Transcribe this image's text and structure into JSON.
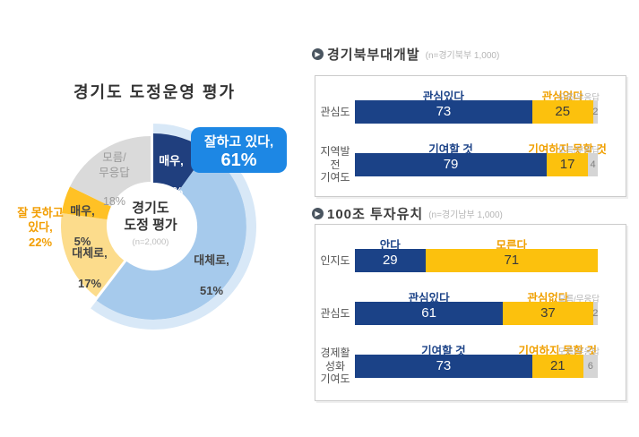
{
  "colors": {
    "positive": "#1B4287",
    "negative": "#FCC10D",
    "dontknow": "#D5D5D5",
    "positive_text": "#1B4287",
    "negative_text": "#F0A000",
    "dontknow_text": "#B3B3B3",
    "value_on_positive": "#FFFFFF",
    "value_on_negative": "#3A3A3A",
    "value_on_dontknow": "#808080",
    "callout_blue": "#1D87E4",
    "callout_orange": "#F29D00"
  },
  "icons": {
    "section_bullet": "▶"
  },
  "chart_data": [
    {
      "type": "pie",
      "donut": true,
      "title": "경기도 도정운영 평가",
      "center_label": {
        "line1": "경기도",
        "line2": "도정 평가",
        "n": "(n=2,000)"
      },
      "callout": {
        "line1": "잘하고 있다,",
        "line2": "61%"
      },
      "negative_callout": {
        "line1": "잘 못하고",
        "line2": "있다,",
        "line3": "22%"
      },
      "emphasis_ring_color": "#D8E8F7",
      "segments": [
        {
          "label": "매우,",
          "value": 10,
          "value_label": "10%",
          "color": "#203F7E",
          "label_color": "#FFFFFF",
          "emphasis": true
        },
        {
          "label": "대체로,",
          "value": 51,
          "value_label": "51%",
          "color": "#A6CAEC",
          "label_color": "#444444",
          "emphasis": true
        },
        {
          "label": "대체로,",
          "value": 17,
          "value_label": "17%",
          "color": "#FCDC8C",
          "label_color": "#444444",
          "emphasis": false
        },
        {
          "label": "매우,",
          "value": 5,
          "value_label": "5%",
          "color": "#FFC125",
          "label_color": "#444444",
          "emphasis": false
        },
        {
          "label": "모름/\n무응답",
          "value": 18,
          "value_label": "18%",
          "color": "#DADADA",
          "label_color": "#9A9A9A",
          "emphasis": false
        }
      ]
    },
    {
      "type": "bar",
      "horizontal": true,
      "stacked": true,
      "title": "경기북부대개발",
      "n_label": "(n=경기북부 1,000)",
      "xlim": [
        0,
        100
      ],
      "rows": [
        {
          "category": "관심도",
          "segments": [
            {
              "label": "관심있다",
              "value": 73
            },
            {
              "label": "관심없다",
              "value": 25
            },
            {
              "label": "모름/무응답",
              "value": 2
            }
          ]
        },
        {
          "category": "지역발전\n기여도",
          "segments": [
            {
              "label": "기여할 것",
              "value": 79
            },
            {
              "label": "기여하지 못할 것",
              "value": 17
            },
            {
              "label": "모름/무응답",
              "value": 4
            }
          ]
        }
      ]
    },
    {
      "type": "bar",
      "horizontal": true,
      "stacked": true,
      "title": "100조 투자유치",
      "n_label": "(n=경기남부 1,000)",
      "xlim": [
        0,
        100
      ],
      "rows": [
        {
          "category": "인지도",
          "segments": [
            {
              "label": "안다",
              "value": 29
            },
            {
              "label": "모른다",
              "value": 71
            },
            {
              "label": "",
              "value": 0
            }
          ]
        },
        {
          "category": "관심도",
          "segments": [
            {
              "label": "관심있다",
              "value": 61
            },
            {
              "label": "관심없다",
              "value": 37
            },
            {
              "label": "모름/무응답",
              "value": 2
            }
          ]
        },
        {
          "category": "경제활성화\n기여도",
          "segments": [
            {
              "label": "기여할 것",
              "value": 73
            },
            {
              "label": "기여하지 못할 것",
              "value": 21
            },
            {
              "label": "모름/무응답",
              "value": 6
            }
          ]
        }
      ]
    }
  ]
}
